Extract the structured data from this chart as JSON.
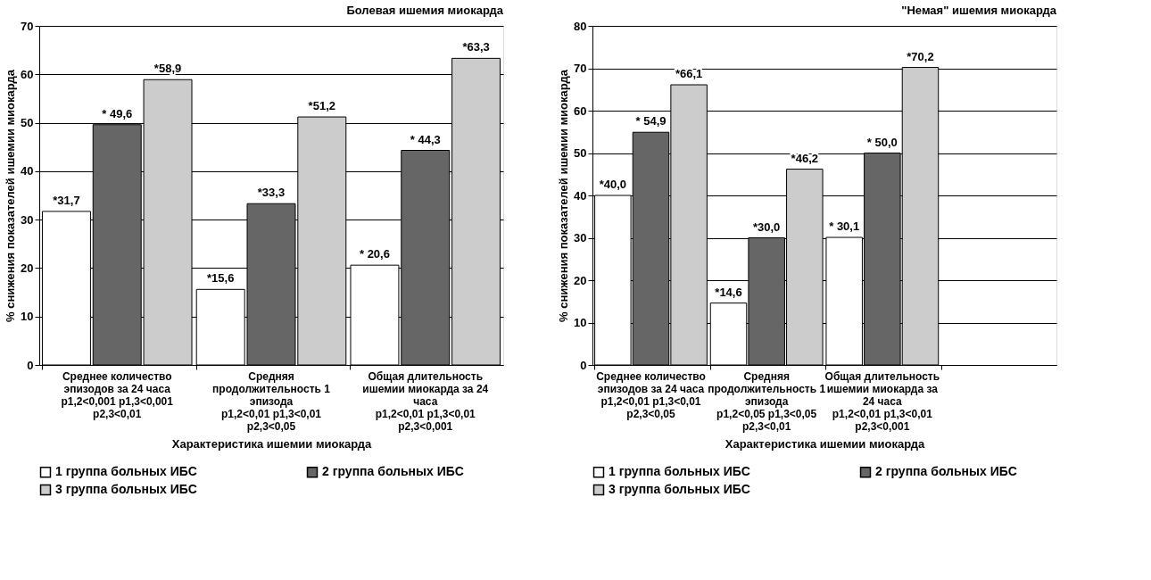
{
  "chart_data": [
    {
      "type": "bar",
      "title": "Болевая ишемия миокарда",
      "xlabel": "Характеристика ишемии миокарда",
      "ylabel": "% снижения показателей ишемии миокарда",
      "categories": [
        "Среднее количество\nэпизодов за 24 часа\np1,2<0,001 p1,3<0,001\np2,3<0,01",
        "Средняя\nпродолжительность 1\nэпизода\np1,2<0,01 p1,3<0,01\np2,3<0,05",
        "Общая длительность\nишемии миокарда за 24\nчаса\np1,2<0,01 p1,3<0,01\np2,3<0,001"
      ],
      "series": [
        {
          "name": "1 группа больных ИБС",
          "color": "#ffffff",
          "values": [
            31.7,
            15.6,
            20.6
          ],
          "value_labels": [
            "*31,7",
            "*15,6",
            "* 20,6"
          ]
        },
        {
          "name": "2 группа больных ИБС",
          "color": "#666666",
          "values": [
            49.6,
            33.3,
            44.3
          ],
          "value_labels": [
            "* 49,6",
            "*33,3",
            "* 44,3"
          ]
        },
        {
          "name": "3 группа больных ИБС",
          "color": "#cccccc",
          "values": [
            58.9,
            51.2,
            63.3
          ],
          "value_labels": [
            "*58,9",
            "*51,2",
            "*63,3"
          ]
        }
      ],
      "ylim": [
        0,
        70
      ],
      "yticks": [
        0,
        10,
        20,
        30,
        40,
        50,
        60,
        70
      ],
      "grid": "y",
      "legend": "bottom"
    },
    {
      "type": "bar",
      "title": "\"Немая\" ишемия миокарда",
      "xlabel": "Характеристика ишемии миокарда",
      "ylabel": "% снижения показателей ишемии миокарда",
      "categories": [
        "Среднее количество\nэпизодов за 24 часа\np1,2<0,01 p1,3<0,01\np2,3<0,05",
        "Средняя\nпродолжительность 1\nэпизода\np1,2<0,05 p1,3<0,05\np2,3<0,01",
        "Общая длительность\nишемии миокарда за\n24 часа\np1,2<0,01 p1,3<0,01\np2,3<0,001",
        null
      ],
      "series": [
        {
          "name": "1 группа больных ИБС",
          "color": "#ffffff",
          "values": [
            40.0,
            14.6,
            30.1,
            null
          ],
          "value_labels": [
            "*40,0",
            "*14,6",
            "* 30,1",
            null
          ]
        },
        {
          "name": "2 группа больных ИБС",
          "color": "#666666",
          "values": [
            54.9,
            30.0,
            50.0,
            null
          ],
          "value_labels": [
            "* 54,9",
            "*30,0",
            "* 50,0",
            null
          ]
        },
        {
          "name": "3 группа больных ИБС",
          "color": "#cccccc",
          "values": [
            66.1,
            46.2,
            70.2,
            null
          ],
          "value_labels": [
            "*66,1",
            "*46,2",
            "*70,2",
            null
          ]
        }
      ],
      "ylim": [
        0,
        80
      ],
      "yticks": [
        0,
        10,
        20,
        30,
        40,
        50,
        60,
        70,
        80
      ],
      "grid": "y",
      "legend": "bottom"
    }
  ]
}
